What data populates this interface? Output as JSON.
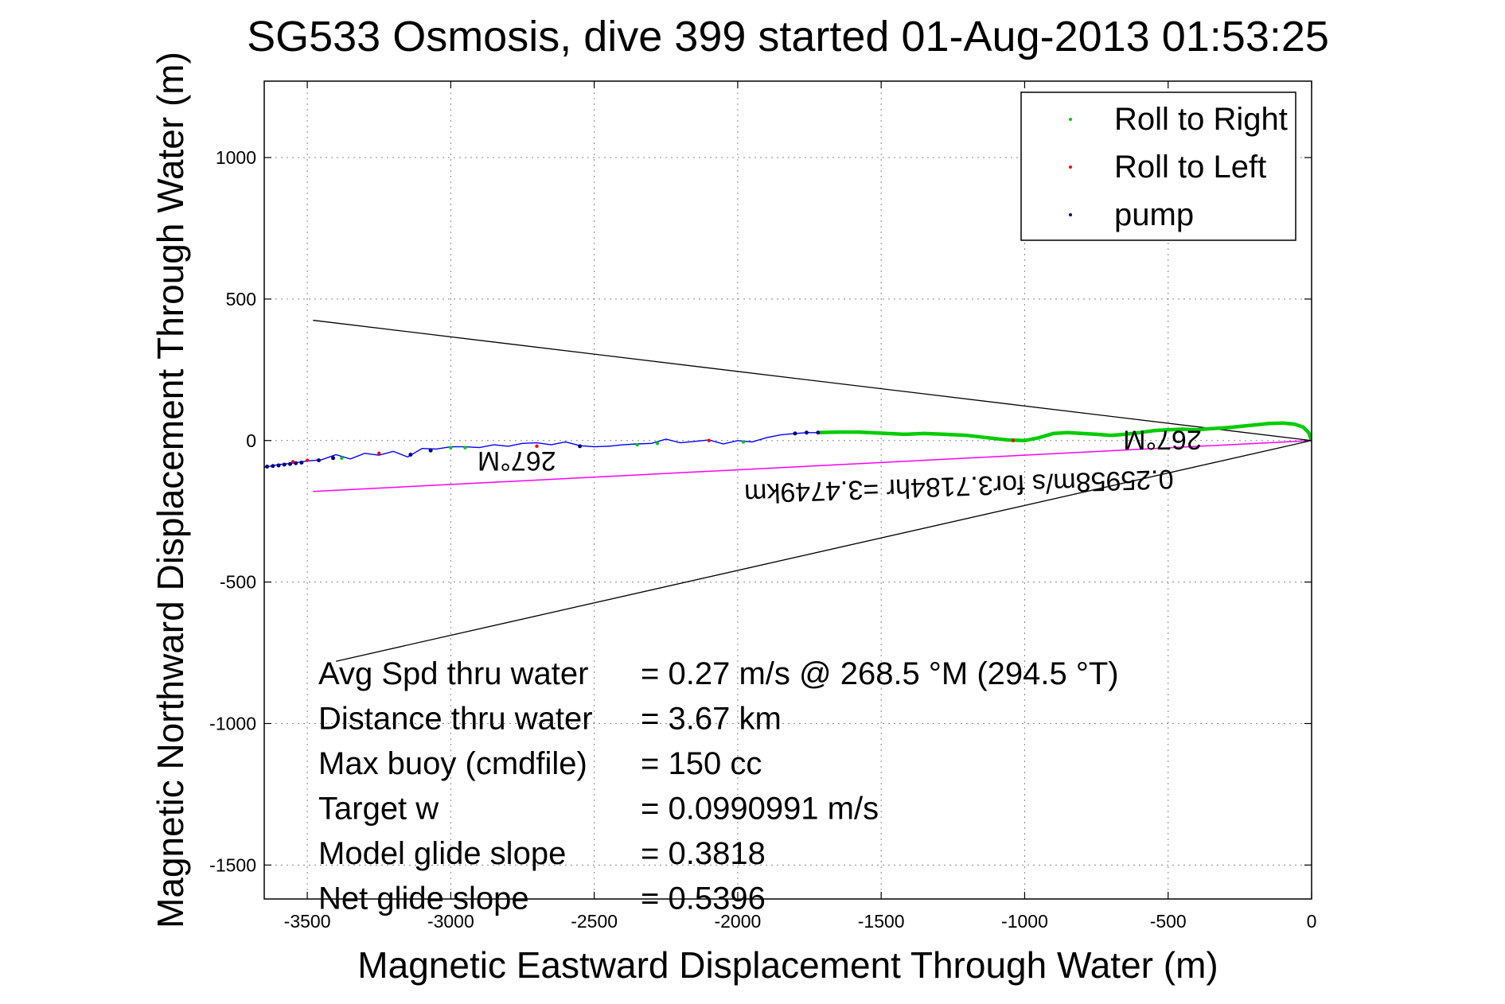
{
  "chart_data": {
    "type": "scatter",
    "title": "SG533 Osmosis, dive 399 started 01-Aug-2013 01:53:25",
    "xlabel": "Magnetic Eastward Displacement Through Water (m)",
    "ylabel": "Magnetic Northward Displacement Through Water (m)",
    "xlim": [
      -3650,
      0
    ],
    "ylim": [
      -1620,
      1270
    ],
    "x_ticks": [
      -3500,
      -3000,
      -2500,
      -2000,
      -1500,
      -1000,
      -500,
      0
    ],
    "y_ticks": [
      -1500,
      -1000,
      -500,
      0,
      500,
      1000
    ],
    "grid": true,
    "legend_position": "top-right",
    "colors": {
      "roll_right": "#00cc00",
      "roll_left": "#ff0000",
      "pump": "#000080",
      "track": "#0000ff",
      "current": "#ff00ff",
      "cone": "#000000"
    },
    "series": [
      {
        "name": "Roll to Right",
        "x": [
          -1720,
          -1650,
          -1580,
          -1500,
          -1420,
          -1350,
          -1280,
          -1200,
          -1130,
          -1060,
          -1000,
          -950,
          -900,
          -850,
          -800,
          -750,
          -700,
          -650,
          -600,
          -550,
          -500,
          -450,
          -400,
          -350,
          -300,
          -250,
          -200,
          -150,
          -100,
          -60,
          -30,
          -10,
          -2,
          -3380,
          -3000,
          -2950,
          -2280,
          -2350,
          -1980
        ],
        "y": [
          28,
          30,
          30,
          26,
          22,
          25,
          22,
          18,
          10,
          2,
          0,
          10,
          25,
          28,
          25,
          22,
          18,
          22,
          28,
          35,
          38,
          40,
          38,
          42,
          45,
          50,
          55,
          60,
          62,
          58,
          48,
          28,
          5,
          -62,
          -25,
          -25,
          -10,
          -15,
          -5
        ]
      },
      {
        "name": "Roll to Left",
        "x": [
          -3500,
          -3250,
          -2700,
          -2100,
          -1040,
          -3550
        ],
        "y": [
          -70,
          -45,
          -20,
          0,
          0,
          -75
        ]
      },
      {
        "name": "pump",
        "x": [
          -3640,
          -3620,
          -3600,
          -3580,
          -3560,
          -3540,
          -3520,
          -3460,
          -3410,
          -3140,
          -3070,
          -2550,
          -1800,
          -1760,
          -1720
        ],
        "y": [
          -92,
          -90,
          -88,
          -85,
          -83,
          -80,
          -78,
          -70,
          -62,
          -50,
          -35,
          -20,
          25,
          28,
          28
        ]
      }
    ],
    "track": {
      "x": [
        -3650,
        -3600,
        -3550,
        -3500,
        -3450,
        -3400,
        -3350,
        -3300,
        -3250,
        -3200,
        -3150,
        -3100,
        -3050,
        -3000,
        -2950,
        -2900,
        -2850,
        -2800,
        -2750,
        -2700,
        -2650,
        -2600,
        -2550,
        -2500,
        -2450,
        -2400,
        -2350,
        -2300,
        -2250,
        -2200,
        -2150,
        -2100,
        -2050,
        -2000,
        -1950,
        -1900,
        -1850,
        -1800,
        -1760,
        -1720
      ],
      "y": [
        -95,
        -85,
        -80,
        -72,
        -68,
        -50,
        -65,
        -45,
        -52,
        -38,
        -58,
        -28,
        -30,
        -22,
        -22,
        -25,
        -15,
        -20,
        -10,
        -8,
        -15,
        -5,
        -18,
        -22,
        -20,
        -15,
        -12,
        -10,
        5,
        -8,
        -3,
        2,
        -12,
        0,
        -5,
        10,
        20,
        25,
        28,
        28
      ]
    },
    "current_line": {
      "x": [
        0,
        -3480
      ],
      "y": [
        0,
        -180
      ]
    },
    "cone_lines": [
      {
        "x": [
          0,
          -3480
        ],
        "y": [
          0,
          425
        ]
      },
      {
        "x": [
          0,
          -3400
        ],
        "y": [
          0,
          -780
        ]
      }
    ],
    "annotations": [
      {
        "text": "267°M",
        "x": -2770,
        "y": -40,
        "rotation": 180
      },
      {
        "text": "267°M",
        "x": -520,
        "y": 35,
        "rotation": 180
      },
      {
        "text": "0.25958m/s for3.7184hr =3.4749km",
        "x": -1230,
        "y": -130,
        "rotation": 178
      }
    ],
    "stats": [
      {
        "label": "Avg Spd thru water",
        "value": "=  0.27 m/s @ 268.5 °M (294.5 °T)"
      },
      {
        "label": "Distance thru water",
        "value": "=  3.67 km"
      },
      {
        "label": "Max buoy (cmdfile)",
        "value": "= 150 cc"
      },
      {
        "label": "Target w",
        "value": "= 0.0990991 m/s"
      },
      {
        "label": "Model glide slope",
        "value": "= 0.3818"
      },
      {
        "label": "Net glide slope",
        "value": "= 0.5396"
      }
    ]
  }
}
